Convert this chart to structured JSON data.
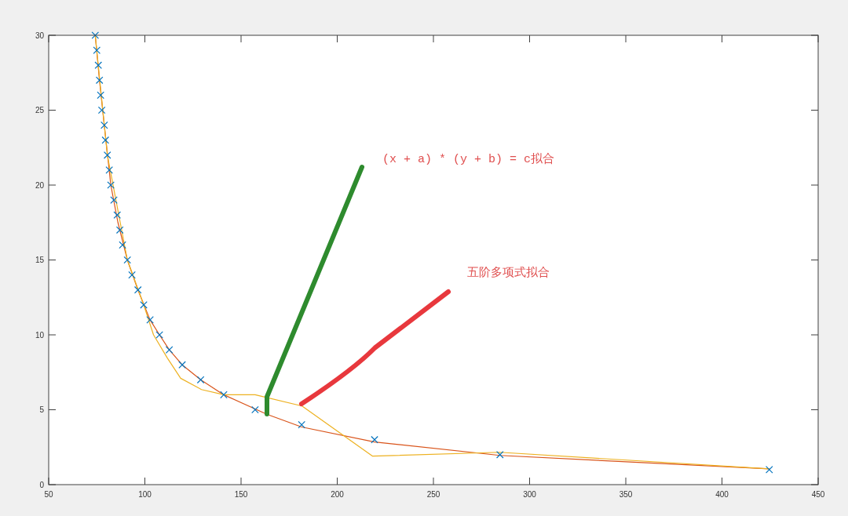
{
  "chart_data": {
    "type": "scatter",
    "xlim": [
      50,
      450
    ],
    "ylim": [
      0,
      30
    ],
    "xticks": [
      50,
      100,
      150,
      200,
      250,
      300,
      350,
      400,
      450
    ],
    "yticks": [
      0,
      5,
      10,
      15,
      20,
      25,
      30
    ],
    "series": [
      {
        "marker": "cross",
        "color": "#0072bd",
        "x": [
          74.2,
          75.0,
          75.8,
          76.4,
          77.0,
          77.6,
          78.9,
          79.5,
          80.5,
          81.5,
          82.3,
          83.9,
          85.6,
          87.0,
          88.4,
          90.9,
          93.3,
          96.4,
          99.4,
          102.7,
          107.6,
          112.7,
          119.4,
          129.0,
          141.0,
          157.3,
          181.5,
          219.4,
          284.6,
          424.6
        ],
        "values": [
          30,
          29,
          28,
          27,
          26,
          25,
          24,
          23,
          22,
          21,
          20,
          19,
          18,
          17,
          16,
          15,
          14,
          13,
          12,
          11,
          10,
          9,
          8,
          7,
          6,
          5,
          4,
          3,
          2,
          1
        ]
      },
      {
        "type": "line",
        "color": "#d95319",
        "x": [
          74.2,
          76.4,
          78.9,
          82.3,
          86.0,
          90.9,
          96.4,
          102.7,
          107.6,
          112.7,
          119.4,
          129.0,
          141.0,
          163.4,
          181.5,
          219.4,
          284.6,
          424.6
        ],
        "values": [
          30,
          27,
          24,
          20,
          17.5,
          15,
          13,
          11,
          10,
          9,
          8,
          7,
          6,
          4.7,
          3.85,
          2.85,
          1.95,
          1.05
        ]
      },
      {
        "type": "line",
        "color": "#edb120",
        "x": [
          74.2,
          80.5,
          90.9,
          99.4,
          104.5,
          111.7,
          118.6,
          129.4,
          141.1,
          157.3,
          181.7,
          218.4,
          284.3,
          424.6
        ],
        "values": [
          30,
          22,
          15,
          12,
          10,
          8.45,
          7.1,
          6.35,
          6.0,
          6.0,
          5.25,
          1.9,
          2.16,
          1.05
        ]
      }
    ],
    "annotations": [
      "(x + a) * (y + b) = c拟合",
      "五阶多项式拟合"
    ]
  }
}
